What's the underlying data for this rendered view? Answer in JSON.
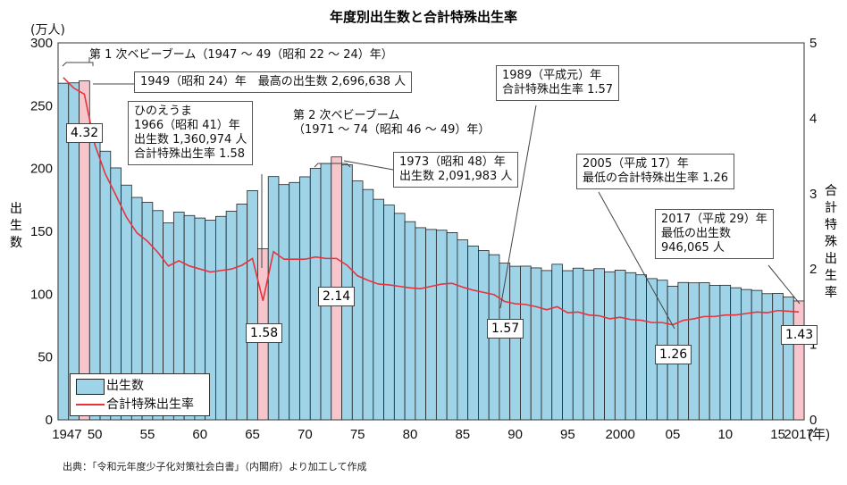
{
  "chart_data": {
    "type": "bar+line",
    "title": "年度別出生数と合計特殊出生率",
    "y_unit": "(万人)",
    "ylabel": "出生数",
    "y2label": "合計特殊出生率",
    "xlabel_unit": "(年)",
    "ylim": [
      0,
      300
    ],
    "y2lim": [
      0,
      5
    ],
    "yticks": [
      "0",
      "50",
      "100",
      "150",
      "200",
      "250",
      "300"
    ],
    "y2ticks": [
      "0",
      "1",
      "2",
      "3",
      "4",
      "5"
    ],
    "xtick_labels": [
      [
        "1947",
        1947
      ],
      [
        "50",
        1950
      ],
      [
        "55",
        1955
      ],
      [
        "60",
        1960
      ],
      [
        "65",
        1965
      ],
      [
        "70",
        1970
      ],
      [
        "75",
        1975
      ],
      [
        "80",
        1980
      ],
      [
        "85",
        1985
      ],
      [
        "90",
        1990
      ],
      [
        "95",
        1995
      ],
      [
        "2000",
        2000
      ],
      [
        "05",
        2005
      ],
      [
        "10",
        2010
      ],
      [
        "15",
        2015
      ],
      [
        "2017",
        2017
      ]
    ],
    "years_start": 1947,
    "births": [
      267.9,
      268.2,
      269.7,
      233.8,
      213.8,
      200.5,
      186.8,
      177.0,
      173.1,
      166.5,
      156.7,
      165.3,
      162.6,
      160.6,
      158.9,
      161.9,
      166.0,
      171.7,
      182.4,
      136.1,
      193.6,
      187.2,
      188.9,
      193.4,
      200.1,
      203.9,
      209.2,
      203.0,
      190.1,
      183.3,
      175.5,
      170.9,
      164.3,
      157.7,
      152.9,
      151.5,
      150.9,
      149.0,
      143.2,
      138.3,
      134.7,
      131.4,
      124.7,
      122.2,
      122.3,
      120.9,
      118.8,
      123.8,
      118.7,
      120.7,
      119.2,
      120.3,
      117.8,
      119.1,
      117.1,
      115.4,
      112.4,
      111.1,
      106.3,
      109.3,
      109.0,
      109.1,
      107.0,
      107.1,
      105.1,
      103.7,
      103.0,
      100.4,
      100.6,
      97.7,
      94.6
    ],
    "tfr": [
      4.54,
      4.4,
      4.32,
      3.65,
      3.26,
      2.98,
      2.69,
      2.48,
      2.37,
      2.22,
      2.04,
      2.11,
      2.04,
      2.0,
      1.96,
      1.98,
      2.0,
      2.05,
      2.14,
      1.58,
      2.23,
      2.13,
      2.13,
      2.13,
      2.16,
      2.14,
      2.14,
      2.05,
      1.91,
      1.85,
      1.8,
      1.79,
      1.77,
      1.75,
      1.74,
      1.77,
      1.8,
      1.81,
      1.76,
      1.72,
      1.69,
      1.66,
      1.57,
      1.54,
      1.53,
      1.5,
      1.46,
      1.5,
      1.42,
      1.43,
      1.39,
      1.38,
      1.34,
      1.36,
      1.33,
      1.32,
      1.29,
      1.29,
      1.26,
      1.32,
      1.34,
      1.37,
      1.37,
      1.39,
      1.39,
      1.41,
      1.43,
      1.42,
      1.45,
      1.44,
      1.43
    ],
    "highlight_years": [
      1949,
      1966,
      1973,
      2017
    ],
    "colors": {
      "bar": "#9fd3e8",
      "highlight_bar": "#f7c6cd",
      "line": "#e8333b",
      "bar_edge": "#222"
    },
    "legend": {
      "placement": "bottom-left",
      "bar": "出生数",
      "line": "合計特殊出生率"
    },
    "data_labels": [
      "4.32",
      "1.58",
      "2.14",
      "1.57",
      "1.26",
      "1.43"
    ],
    "annotations": {
      "boom1": "第 1 次ベビーブーム（1947 ～ 49（昭和 22 ～ 24）年）",
      "max1949": "1949（昭和 24）年　最高の出生数 2,696,638 人",
      "hinoe": [
        "ひのえうま",
        "1966（昭和 41）年",
        "出生数 1,360,974 人",
        "合計特殊出生率 1.58"
      ],
      "boom2": [
        "第 2 次ベビーブーム",
        "（1971 ～ 74（昭和 46 ～ 49）年）"
      ],
      "y1973": [
        "1973（昭和 48）年",
        "出生数 2,091,983 人"
      ],
      "y1989": [
        "1989（平成元）年",
        "合計特殊出生率 1.57"
      ],
      "y2005": [
        "2005（平成 17）年",
        "最低の合計特殊出生率 1.26"
      ],
      "y2017": [
        "2017（平成 29）年",
        "最低の出生数",
        "946,065 人"
      ]
    }
  },
  "source": "出典：「令和元年度少子化対策社会白書」（内閣府）より加工して作成"
}
